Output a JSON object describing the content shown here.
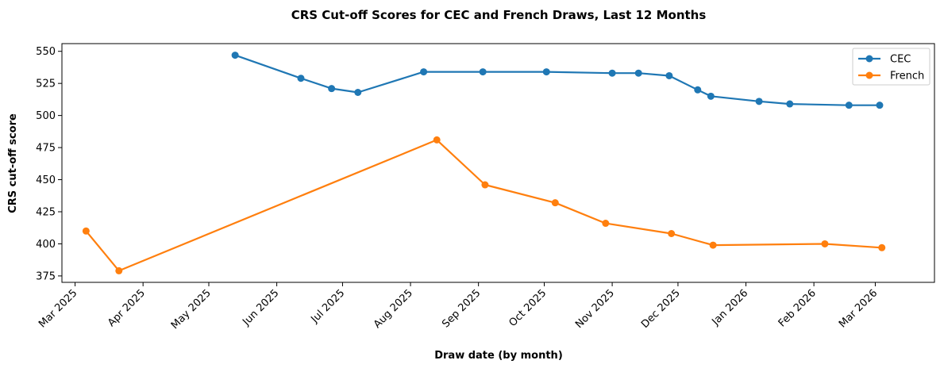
{
  "chart_data": {
    "type": "line",
    "title": "CRS Cut-off Scores for CEC and French Draws, Last 12 Months",
    "xlabel": "Draw date (by month)",
    "ylabel": "CRS cut-off score",
    "xlim": [
      "2025-02-23",
      "2026-03-28"
    ],
    "ylim": [
      370,
      556
    ],
    "x_ticks": [
      "2025-03-01",
      "2025-04-01",
      "2025-05-01",
      "2025-06-01",
      "2025-07-01",
      "2025-08-01",
      "2025-09-01",
      "2025-10-01",
      "2025-11-01",
      "2025-12-01",
      "2026-01-01",
      "2026-02-01",
      "2026-03-01"
    ],
    "x_tick_labels": [
      "Mar 2025",
      "Apr 2025",
      "May 2025",
      "Jun 2025",
      "Jul 2025",
      "Aug 2025",
      "Sep 2025",
      "Oct 2025",
      "Nov 2025",
      "Dec 2025",
      "Jan 2026",
      "Feb 2026",
      "Mar 2026"
    ],
    "y_ticks": [
      375,
      400,
      425,
      450,
      475,
      500,
      525,
      550
    ],
    "y_tick_labels": [
      "375",
      "400",
      "425",
      "450",
      "475",
      "500",
      "525",
      "550"
    ],
    "grid": false,
    "legend_position": "top-right",
    "series": [
      {
        "name": "CEC",
        "color": "#1f77b4",
        "points": [
          {
            "x": "2025-05-13",
            "y": 547
          },
          {
            "x": "2025-06-12",
            "y": 529
          },
          {
            "x": "2025-06-26",
            "y": 521
          },
          {
            "x": "2025-07-08",
            "y": 518
          },
          {
            "x": "2025-08-07",
            "y": 534
          },
          {
            "x": "2025-09-03",
            "y": 534
          },
          {
            "x": "2025-10-02",
            "y": 534
          },
          {
            "x": "2025-11-01",
            "y": 533
          },
          {
            "x": "2025-11-13",
            "y": 533
          },
          {
            "x": "2025-11-27",
            "y": 531
          },
          {
            "x": "2025-12-10",
            "y": 520
          },
          {
            "x": "2025-12-16",
            "y": 515
          },
          {
            "x": "2026-01-07",
            "y": 511
          },
          {
            "x": "2026-01-21",
            "y": 509
          },
          {
            "x": "2026-02-17",
            "y": 508
          },
          {
            "x": "2026-03-03",
            "y": 508
          }
        ]
      },
      {
        "name": "French",
        "color": "#ff7f0e",
        "points": [
          {
            "x": "2025-03-06",
            "y": 410
          },
          {
            "x": "2025-03-21",
            "y": 379
          },
          {
            "x": "2025-08-13",
            "y": 481
          },
          {
            "x": "2025-09-04",
            "y": 446
          },
          {
            "x": "2025-10-06",
            "y": 432
          },
          {
            "x": "2025-10-29",
            "y": 416
          },
          {
            "x": "2025-11-28",
            "y": 408
          },
          {
            "x": "2025-12-17",
            "y": 399
          },
          {
            "x": "2026-02-06",
            "y": 400
          },
          {
            "x": "2026-03-04",
            "y": 397
          }
        ]
      }
    ]
  }
}
